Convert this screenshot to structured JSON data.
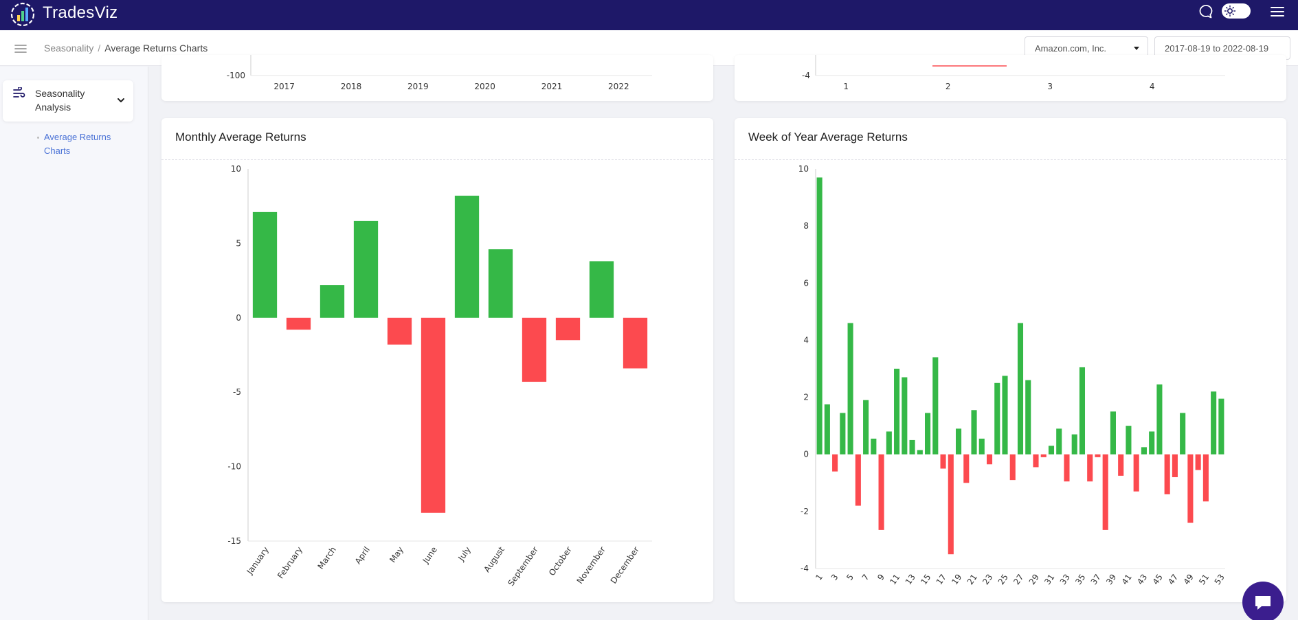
{
  "app": {
    "brand": "TradesViz"
  },
  "topbar_icons": [
    "chat-icon",
    "theme-toggle",
    "hamburger-icon"
  ],
  "breadcrumb": {
    "parent": "Seasonality",
    "separator": "/",
    "current": "Average Returns Charts"
  },
  "filters": {
    "ticker": "Amazon.com, Inc.",
    "date_range": "2017-08-19 to 2022-08-19"
  },
  "sidebar": {
    "section_label": "Seasonality Analysis",
    "items": [
      {
        "label": "Average Returns Charts"
      }
    ]
  },
  "colors": {
    "positive": "#35b847",
    "negative": "#fc4a4f",
    "nav": "#1e1868",
    "link": "#4a72d6"
  },
  "top_partial_left": {
    "ytick": "-100",
    "categories": [
      "2017",
      "2018",
      "2019",
      "2020",
      "2021",
      "2022"
    ]
  },
  "top_partial_right": {
    "ytick": "-4",
    "categories": [
      "1",
      "2",
      "3",
      "4"
    ]
  },
  "chart_data": [
    {
      "type": "bar",
      "title": "Monthly Average Returns",
      "categories": [
        "January",
        "February",
        "March",
        "April",
        "May",
        "June",
        "July",
        "August",
        "September",
        "October",
        "November",
        "December"
      ],
      "values": [
        7.1,
        -0.8,
        2.2,
        6.5,
        -1.8,
        -13.1,
        8.2,
        4.6,
        -4.3,
        -1.5,
        3.8,
        -3.4
      ],
      "yticks": [
        10,
        5,
        0,
        -5,
        -10,
        -15
      ],
      "ylim": [
        -15,
        10
      ],
      "xlabel": "",
      "ylabel": ""
    },
    {
      "type": "bar",
      "title": "Week of Year Average Returns",
      "categories": [
        "1",
        "2",
        "3",
        "4",
        "5",
        "6",
        "7",
        "8",
        "9",
        "10",
        "11",
        "12",
        "13",
        "14",
        "15",
        "16",
        "17",
        "18",
        "19",
        "20",
        "21",
        "22",
        "23",
        "24",
        "25",
        "26",
        "27",
        "28",
        "29",
        "30",
        "31",
        "32",
        "33",
        "34",
        "35",
        "36",
        "37",
        "38",
        "39",
        "40",
        "41",
        "42",
        "43",
        "44",
        "45",
        "46",
        "47",
        "48",
        "49",
        "50",
        "51",
        "52",
        "53"
      ],
      "tick_labels": [
        "1",
        "3",
        "5",
        "7",
        "9",
        "11",
        "13",
        "15",
        "17",
        "19",
        "21",
        "23",
        "25",
        "27",
        "29",
        "31",
        "33",
        "35",
        "37",
        "39",
        "41",
        "43",
        "45",
        "47",
        "49",
        "51",
        "53"
      ],
      "values": [
        9.7,
        1.75,
        -0.6,
        1.45,
        4.6,
        -1.8,
        1.9,
        0.55,
        -2.65,
        0.8,
        3.0,
        2.7,
        0.5,
        0.15,
        1.45,
        3.4,
        -0.5,
        -3.5,
        0.9,
        -1.0,
        1.55,
        0.55,
        -0.35,
        2.5,
        2.75,
        -0.9,
        4.6,
        2.6,
        -0.45,
        -0.1,
        0.3,
        0.9,
        -0.95,
        0.7,
        3.05,
        -0.95,
        -0.1,
        -2.65,
        1.5,
        -0.75,
        1.0,
        -1.3,
        0.25,
        0.8,
        2.45,
        -1.4,
        -0.8,
        1.45,
        -2.4,
        -0.55,
        -1.65,
        2.2,
        1.95
      ],
      "yticks": [
        10,
        8,
        6,
        4,
        2,
        0,
        -2,
        -4
      ],
      "ylim": [
        -4,
        10
      ],
      "xlabel": "",
      "ylabel": ""
    }
  ]
}
